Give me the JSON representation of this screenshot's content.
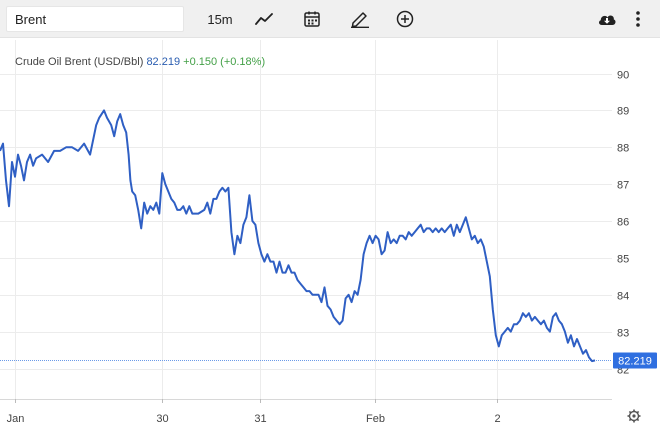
{
  "toolbar": {
    "symbol": "Brent",
    "interval": "15m",
    "icons": [
      "line-chart-icon",
      "calendar-icon",
      "pencil-icon",
      "plus-circle-icon",
      "cloud-download-icon",
      "more-vertical-icon"
    ]
  },
  "legend": {
    "name": "Crude Oil Brent (USD/Bbl)",
    "price": "82.219",
    "change": "+0.150 (+0.18%)"
  },
  "last_price_label": "82.219",
  "colors": {
    "line": "#2f5fc4",
    "last_price_tag": "#2f6fe0",
    "change": "#43a047"
  },
  "chart_data": {
    "type": "line",
    "title": "Crude Oil Brent (USD/Bbl)",
    "xlabel": "",
    "ylabel": "",
    "ylim": [
      81.8,
      90.4
    ],
    "xlim": [
      0,
      100
    ],
    "y_ticks": [
      82,
      83,
      84,
      85,
      86,
      87,
      88,
      89,
      90
    ],
    "x_ticks": [
      {
        "label": "Jan",
        "x": 2.5
      },
      {
        "label": "30",
        "x": 27
      },
      {
        "label": "31",
        "x": 43.3
      },
      {
        "label": "Feb",
        "x": 62.4
      },
      {
        "label": "2",
        "x": 82.7
      }
    ],
    "grid": true,
    "last_value": 82.219,
    "series": [
      {
        "values": [
          [
            0,
            87.9
          ],
          [
            0.5,
            88.1
          ],
          [
            1,
            87.1
          ],
          [
            1.5,
            86.4
          ],
          [
            2,
            87.6
          ],
          [
            2.5,
            87.2
          ],
          [
            3,
            87.8
          ],
          [
            3.5,
            87.5
          ],
          [
            4,
            87.1
          ],
          [
            4.5,
            87.6
          ],
          [
            5,
            87.8
          ],
          [
            5.5,
            87.5
          ],
          [
            6,
            87.7
          ],
          [
            7,
            87.8
          ],
          [
            8,
            87.6
          ],
          [
            9,
            87.9
          ],
          [
            10,
            87.9
          ],
          [
            11,
            88.0
          ],
          [
            12,
            88.0
          ],
          [
            13,
            87.9
          ],
          [
            14,
            88.1
          ],
          [
            15,
            87.8
          ],
          [
            16,
            88.6
          ],
          [
            16.5,
            88.8
          ],
          [
            17.3,
            89.0
          ],
          [
            17.8,
            88.8
          ],
          [
            18.5,
            88.6
          ],
          [
            19,
            88.3
          ],
          [
            19.5,
            88.7
          ],
          [
            20,
            88.9
          ],
          [
            20.5,
            88.6
          ],
          [
            21,
            88.4
          ],
          [
            21.4,
            87.8
          ],
          [
            21.7,
            87.1
          ],
          [
            22,
            86.8
          ],
          [
            22.5,
            86.7
          ],
          [
            23,
            86.3
          ],
          [
            23.5,
            85.8
          ],
          [
            24,
            86.5
          ],
          [
            24.5,
            86.2
          ],
          [
            25,
            86.4
          ],
          [
            25.5,
            86.3
          ],
          [
            26,
            86.5
          ],
          [
            26.5,
            86.2
          ],
          [
            27,
            87.3
          ],
          [
            27.5,
            87.0
          ],
          [
            28,
            86.8
          ],
          [
            28.5,
            86.6
          ],
          [
            29,
            86.5
          ],
          [
            29.5,
            86.3
          ],
          [
            30,
            86.3
          ],
          [
            30.5,
            86.4
          ],
          [
            31,
            86.2
          ],
          [
            31.5,
            86.4
          ],
          [
            32,
            86.2
          ],
          [
            33,
            86.2
          ],
          [
            34,
            86.3
          ],
          [
            34.5,
            86.5
          ],
          [
            35,
            86.2
          ],
          [
            35.5,
            86.6
          ],
          [
            36,
            86.6
          ],
          [
            36.5,
            86.8
          ],
          [
            37,
            86.9
          ],
          [
            37.5,
            86.8
          ],
          [
            38,
            86.9
          ],
          [
            38.5,
            85.7
          ],
          [
            39,
            85.1
          ],
          [
            39.5,
            85.6
          ],
          [
            40,
            85.4
          ],
          [
            40.5,
            85.9
          ],
          [
            41,
            86.1
          ],
          [
            41.5,
            86.7
          ],
          [
            42,
            86.0
          ],
          [
            42.5,
            85.9
          ],
          [
            43,
            85.4
          ],
          [
            43.5,
            85.1
          ],
          [
            44,
            84.9
          ],
          [
            44.5,
            85.1
          ],
          [
            45,
            84.9
          ],
          [
            45.5,
            84.9
          ],
          [
            46,
            84.6
          ],
          [
            46.5,
            84.9
          ],
          [
            47,
            84.6
          ],
          [
            47.5,
            84.6
          ],
          [
            48,
            84.8
          ],
          [
            48.5,
            84.6
          ],
          [
            49,
            84.6
          ],
          [
            49.5,
            84.4
          ],
          [
            50,
            84.3
          ],
          [
            50.5,
            84.2
          ],
          [
            51,
            84.1
          ],
          [
            51.5,
            84.1
          ],
          [
            52,
            84.0
          ],
          [
            52.5,
            84.0
          ],
          [
            53,
            84.0
          ],
          [
            53.5,
            83.8
          ],
          [
            54,
            84.2
          ],
          [
            54.5,
            83.7
          ],
          [
            55,
            83.6
          ],
          [
            55.5,
            83.4
          ],
          [
            56,
            83.3
          ],
          [
            56.5,
            83.2
          ],
          [
            57,
            83.3
          ],
          [
            57.5,
            83.9
          ],
          [
            58,
            84.0
          ],
          [
            58.5,
            83.8
          ],
          [
            59,
            84.1
          ],
          [
            59.5,
            84.0
          ],
          [
            60,
            84.4
          ],
          [
            60.5,
            85.1
          ],
          [
            61,
            85.4
          ],
          [
            61.5,
            85.6
          ],
          [
            62,
            85.4
          ],
          [
            62.5,
            85.6
          ],
          [
            63,
            85.5
          ],
          [
            63.5,
            85.1
          ],
          [
            64,
            85.2
          ],
          [
            64.5,
            85.7
          ],
          [
            65,
            85.4
          ],
          [
            65.5,
            85.5
          ],
          [
            66,
            85.4
          ],
          [
            66.5,
            85.6
          ],
          [
            67,
            85.6
          ],
          [
            67.5,
            85.5
          ],
          [
            68,
            85.7
          ],
          [
            68.5,
            85.6
          ],
          [
            69,
            85.7
          ],
          [
            69.5,
            85.8
          ],
          [
            70,
            85.9
          ],
          [
            70.5,
            85.7
          ],
          [
            71,
            85.8
          ],
          [
            71.5,
            85.8
          ],
          [
            72,
            85.7
          ],
          [
            72.5,
            85.8
          ],
          [
            73,
            85.7
          ],
          [
            73.5,
            85.8
          ],
          [
            74,
            85.7
          ],
          [
            74.5,
            85.8
          ],
          [
            75,
            85.9
          ],
          [
            75.5,
            85.6
          ],
          [
            76,
            85.9
          ],
          [
            76.5,
            85.7
          ],
          [
            77,
            85.9
          ],
          [
            77.5,
            86.1
          ],
          [
            78,
            85.8
          ],
          [
            78.5,
            85.5
          ],
          [
            79,
            85.6
          ],
          [
            79.5,
            85.4
          ],
          [
            80,
            85.5
          ],
          [
            80.5,
            85.3
          ],
          [
            81,
            84.9
          ],
          [
            81.5,
            84.5
          ],
          [
            82,
            83.6
          ],
          [
            82.5,
            82.9
          ],
          [
            83,
            82.6
          ],
          [
            83.5,
            82.9
          ],
          [
            84,
            83.0
          ],
          [
            84.5,
            83.1
          ],
          [
            85,
            83.0
          ],
          [
            85.5,
            83.2
          ],
          [
            86,
            83.2
          ],
          [
            86.5,
            83.3
          ],
          [
            87,
            83.5
          ],
          [
            87.5,
            83.4
          ],
          [
            88,
            83.5
          ],
          [
            88.5,
            83.3
          ],
          [
            89,
            83.4
          ],
          [
            89.5,
            83.3
          ],
          [
            90,
            83.2
          ],
          [
            90.5,
            83.3
          ],
          [
            91,
            83.1
          ],
          [
            91.5,
            83.0
          ],
          [
            92,
            83.4
          ],
          [
            92.5,
            83.5
          ],
          [
            93,
            83.3
          ],
          [
            93.5,
            83.2
          ],
          [
            94,
            83.0
          ],
          [
            94.5,
            82.7
          ],
          [
            95,
            82.9
          ],
          [
            95.5,
            82.6
          ],
          [
            96,
            82.8
          ],
          [
            96.5,
            82.6
          ],
          [
            97,
            82.4
          ],
          [
            97.5,
            82.5
          ],
          [
            98,
            82.3
          ],
          [
            98.5,
            82.2
          ],
          [
            99,
            82.22
          ]
        ]
      }
    ]
  }
}
